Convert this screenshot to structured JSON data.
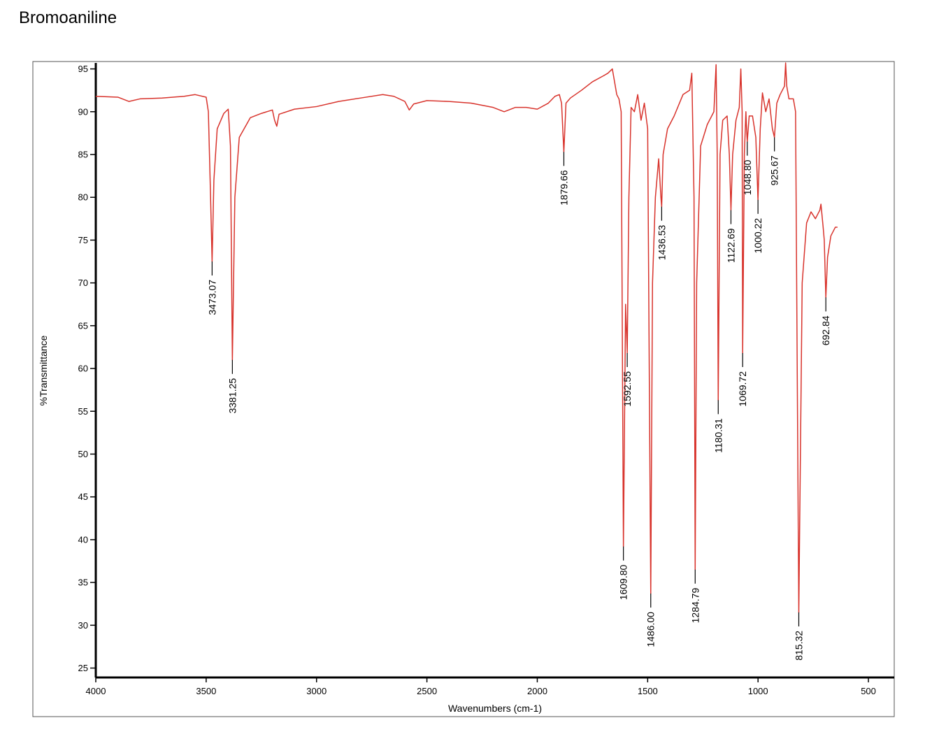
{
  "chart_data": {
    "type": "line",
    "title": "Bromoaniline",
    "xlabel": "Wavenumbers (cm-1)",
    "ylabel": "%Transmittance",
    "color": "#d8332c",
    "xlim": [
      4000,
      383
    ],
    "ylim": [
      23.9,
      95.7
    ],
    "xticks": [
      4000,
      3500,
      3000,
      2500,
      2000,
      1500,
      1000,
      500
    ],
    "yticks": [
      25,
      30,
      35,
      40,
      45,
      50,
      55,
      60,
      65,
      70,
      75,
      80,
      85,
      90,
      95
    ],
    "x": [
      4000,
      3900,
      3850,
      3800,
      3700,
      3600,
      3550,
      3500,
      3490,
      3480,
      3473.07,
      3465,
      3450,
      3420,
      3400,
      3390,
      3381.25,
      3370,
      3350,
      3300,
      3250,
      3200,
      3190,
      3180,
      3170,
      3100,
      3000,
      2900,
      2800,
      2700,
      2650,
      2600,
      2580,
      2560,
      2500,
      2400,
      2300,
      2200,
      2150,
      2100,
      2050,
      2000,
      1950,
      1920,
      1900,
      1890,
      1879.66,
      1870,
      1850,
      1800,
      1750,
      1700,
      1680,
      1660,
      1650,
      1640,
      1630,
      1620,
      1609.8,
      1600,
      1592.55,
      1585,
      1575,
      1560,
      1545,
      1530,
      1515,
      1500,
      1486.0,
      1478,
      1465,
      1450,
      1440,
      1436.53,
      1430,
      1410,
      1380,
      1340,
      1310,
      1300,
      1290,
      1284.79,
      1278,
      1260,
      1230,
      1200,
      1190,
      1185,
      1180.31,
      1172,
      1160,
      1140,
      1130,
      1122.69,
      1115,
      1100,
      1085,
      1078,
      1072,
      1069.72,
      1062,
      1055,
      1052,
      1048.8,
      1040,
      1025,
      1010,
      1000.22,
      990,
      980,
      965,
      950,
      935,
      925.67,
      915,
      900,
      880,
      875,
      870,
      860,
      840,
      830,
      820,
      815.32,
      808,
      800,
      780,
      760,
      740,
      720,
      715,
      705,
      700,
      692.84,
      685,
      670,
      650,
      640
    ],
    "values": [
      91.8,
      91.7,
      91.2,
      91.5,
      91.6,
      91.8,
      92.0,
      91.7,
      90,
      80,
      72.5,
      82,
      88,
      89.8,
      90.3,
      86,
      61,
      80,
      87,
      89.3,
      89.8,
      90.2,
      89,
      88.3,
      89.7,
      90.3,
      90.6,
      91.2,
      91.6,
      92.0,
      91.8,
      91.2,
      90.2,
      90.9,
      91.3,
      91.2,
      91,
      90.5,
      90.0,
      90.5,
      90.5,
      90.3,
      91,
      91.8,
      92,
      91,
      85.3,
      91,
      91.6,
      92.5,
      93.5,
      94.2,
      94.5,
      95,
      93.5,
      92,
      91.5,
      90,
      39.2,
      67.5,
      61.8,
      80,
      90.5,
      90,
      92,
      89,
      91,
      88,
      33.7,
      70,
      80,
      84.5,
      80,
      78.9,
      85,
      88,
      89.5,
      92,
      92.5,
      94.5,
      80,
      36.5,
      70,
      86,
      88.5,
      90,
      95.5,
      85,
      56.3,
      85,
      89,
      89.5,
      85,
      78.5,
      85,
      89,
      90.5,
      95,
      90,
      61.8,
      85,
      90,
      88,
      86.5,
      89.5,
      89.5,
      87,
      79.7,
      88,
      92.2,
      90,
      91.5,
      88,
      87,
      91,
      92,
      93,
      95.7,
      93,
      91.5,
      91.5,
      90,
      50,
      31.5,
      50,
      70,
      77,
      78.3,
      77.5,
      78.5,
      79.2,
      76.5,
      75,
      68.3,
      73,
      75.5,
      76.5,
      76.5
    ],
    "annotations": [
      {
        "x": 3473.07,
        "label": "3473.07"
      },
      {
        "x": 3381.25,
        "label": "3381.25"
      },
      {
        "x": 1879.66,
        "label": "1879.66"
      },
      {
        "x": 1609.8,
        "label": "1609.80"
      },
      {
        "x": 1592.55,
        "label": "1592.55"
      },
      {
        "x": 1486.0,
        "label": "1486.00"
      },
      {
        "x": 1436.53,
        "label": "1436.53"
      },
      {
        "x": 1284.79,
        "label": "1284.79"
      },
      {
        "x": 1180.31,
        "label": "1180.31"
      },
      {
        "x": 1122.69,
        "label": "1122.69"
      },
      {
        "x": 1069.72,
        "label": "1069.72"
      },
      {
        "x": 1048.8,
        "label": "1048.80"
      },
      {
        "x": 1000.22,
        "label": "1000.22"
      },
      {
        "x": 925.67,
        "label": "925.67"
      },
      {
        "x": 815.32,
        "label": "815.32"
      },
      {
        "x": 692.84,
        "label": "692.84"
      }
    ]
  }
}
